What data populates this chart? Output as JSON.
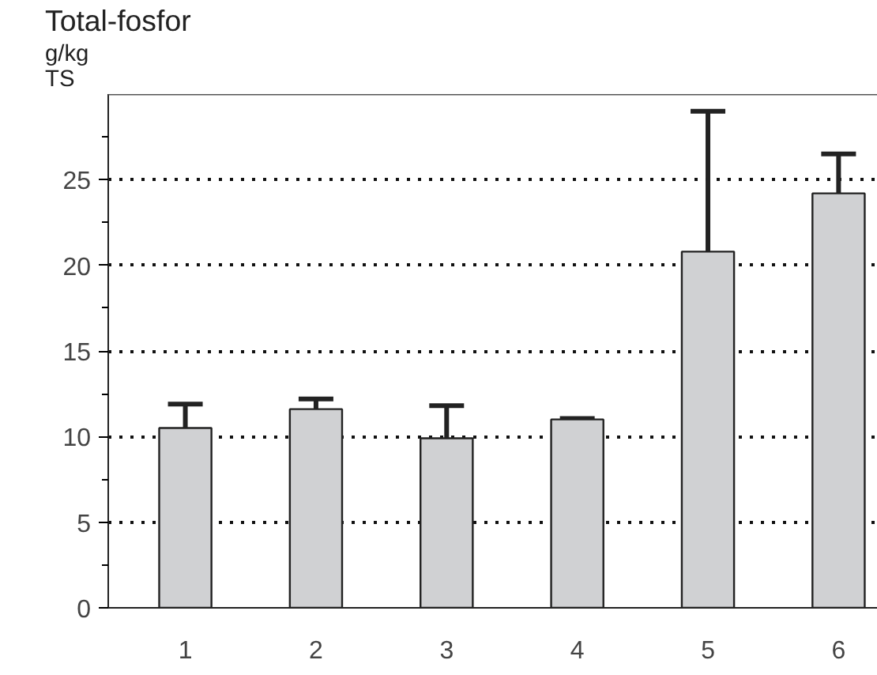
{
  "chart_data": {
    "type": "bar",
    "title": "Total-fosfor",
    "ylabel": "g/kg TS",
    "categories": [
      "1",
      "2",
      "3",
      "4",
      "5",
      "6"
    ],
    "values": [
      10.5,
      11.6,
      9.9,
      11.0,
      20.8,
      24.2
    ],
    "errors": [
      [
        10.5,
        11.9
      ],
      [
        11.6,
        12.2
      ],
      [
        9.9,
        11.8
      ],
      [
        11.0,
        11.05
      ],
      [
        20.8,
        29.0
      ],
      [
        24.2,
        26.5
      ]
    ],
    "color": "#d0d1d3",
    "ylim": [
      0,
      30
    ],
    "yticks": [
      0,
      {
        "value": 2.5,
        "label": null
      },
      5,
      {
        "value": 7.5,
        "label": null
      },
      10,
      {
        "value": 12.5,
        "label": null
      },
      15,
      {
        "value": 17.5,
        "label": null
      },
      20,
      {
        "value": 22.5,
        "label": null
      },
      25,
      {
        "value": 27.5,
        "label": null
      }
    ],
    "grid": "y"
  }
}
